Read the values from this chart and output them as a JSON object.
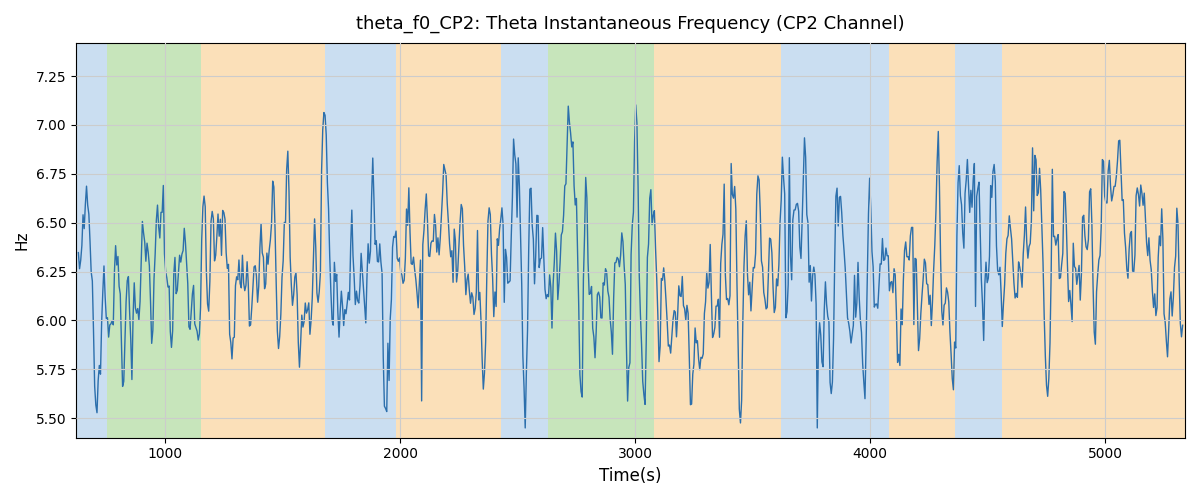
{
  "title": "theta_f0_CP2: Theta Instantaneous Frequency (CP2 Channel)",
  "xlabel": "Time(s)",
  "ylabel": "Hz",
  "ylim": [
    5.4,
    7.42
  ],
  "xlim": [
    620,
    5340
  ],
  "line_color": "#2c6fac",
  "line_width": 1.0,
  "figsize": [
    12.0,
    5.0
  ],
  "dpi": 100,
  "background_bands": [
    {
      "xmin": 620,
      "xmax": 750,
      "color": "#a8c8e8",
      "alpha": 0.6
    },
    {
      "xmin": 750,
      "xmax": 1150,
      "color": "#90cc78",
      "alpha": 0.5
    },
    {
      "xmin": 1150,
      "xmax": 1680,
      "color": "#f8c880",
      "alpha": 0.55
    },
    {
      "xmin": 1680,
      "xmax": 1980,
      "color": "#a8c8e8",
      "alpha": 0.6
    },
    {
      "xmin": 1980,
      "xmax": 2430,
      "color": "#f8c880",
      "alpha": 0.55
    },
    {
      "xmin": 2430,
      "xmax": 2590,
      "color": "#a8c8e8",
      "alpha": 0.6
    },
    {
      "xmin": 2590,
      "xmax": 2630,
      "color": "#a8c8e8",
      "alpha": 0.6
    },
    {
      "xmin": 2630,
      "xmax": 3080,
      "color": "#90cc78",
      "alpha": 0.5
    },
    {
      "xmin": 3080,
      "xmax": 3620,
      "color": "#f8c880",
      "alpha": 0.55
    },
    {
      "xmin": 3620,
      "xmax": 4080,
      "color": "#a8c8e8",
      "alpha": 0.6
    },
    {
      "xmin": 4080,
      "xmax": 4360,
      "color": "#f8c880",
      "alpha": 0.55
    },
    {
      "xmin": 4360,
      "xmax": 4560,
      "color": "#a8c8e8",
      "alpha": 0.6
    },
    {
      "xmin": 4560,
      "xmax": 5340,
      "color": "#f8c880",
      "alpha": 0.55
    }
  ],
  "yticks": [
    5.5,
    5.75,
    6.0,
    6.25,
    6.5,
    6.75,
    7.0,
    7.25
  ],
  "xticks": [
    1000,
    2000,
    3000,
    4000,
    5000
  ],
  "grid_color": "#cccccc",
  "grid_lw": 0.8,
  "seed": 42,
  "n_points": 950,
  "t_start": 630,
  "t_end": 5330
}
